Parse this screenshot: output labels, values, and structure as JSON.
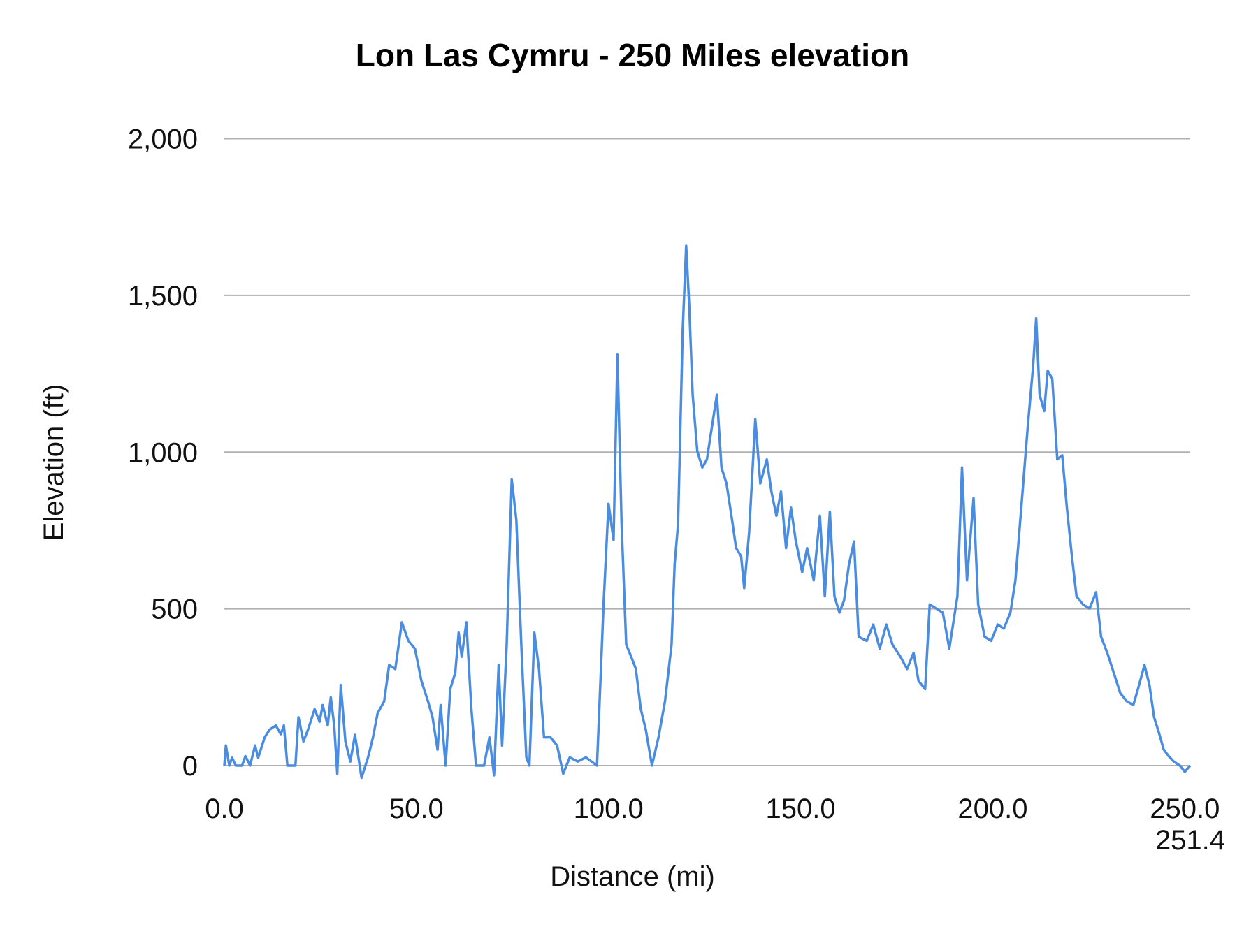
{
  "chart_data": {
    "type": "line",
    "title": "Lon Las Cymru - 250 Miles elevation",
    "xlabel": "Distance (mi)",
    "ylabel": "Elevation (ft)",
    "xlim": [
      0,
      251.4
    ],
    "ylim": [
      0,
      2000
    ],
    "x_ticks": [
      "0.0",
      "50.0",
      "100.0",
      "150.0",
      "200.0",
      "250.0",
      "251.4"
    ],
    "x_tick_values": [
      0,
      50,
      100,
      150,
      200,
      250,
      251.4
    ],
    "y_ticks": [
      "0",
      "500",
      "1,000",
      "1,500",
      "2,000"
    ],
    "y_tick_values": [
      0,
      500,
      1000,
      1500,
      2000
    ],
    "grid": "horizontal",
    "legend": "none",
    "line_color": "#4a8ce0",
    "x": [
      0,
      0.4,
      1.3,
      2,
      3,
      4.6,
      5.5,
      6.7,
      8,
      8.8,
      10.5,
      11.8,
      13.4,
      14.7,
      15.5,
      16.4,
      18.5,
      19.3,
      20.6,
      21.8,
      23.5,
      24.8,
      25.6,
      26.9,
      27.7,
      28.6,
      29.4,
      30.3,
      31.5,
      32.8,
      34,
      35.7,
      37.4,
      38.7,
      39.9,
      41.6,
      42.9,
      44.5,
      46.2,
      47.9,
      49.6,
      51.3,
      53,
      54.2,
      55.5,
      56.3,
      57.6,
      58.8,
      60.1,
      61,
      61.8,
      63,
      64.3,
      65.5,
      67.6,
      69,
      70.2,
      71.4,
      72.3,
      73.5,
      74.8,
      76,
      77.3,
      78.6,
      79.4,
      80.7,
      81.9,
      83.2,
      84.9,
      86.6,
      88.2,
      89.9,
      92,
      94.1,
      97,
      98.7,
      100,
      101.3,
      102.3,
      103.4,
      104.6,
      105.9,
      107.1,
      108.4,
      109.7,
      111.3,
      113,
      114.7,
      116.4,
      117.2,
      118.1,
      119.3,
      120.2,
      121,
      121.9,
      123.1,
      124.4,
      125.6,
      126.9,
      128.2,
      129.4,
      130.7,
      132,
      133.2,
      134.5,
      135.3,
      136.6,
      138.2,
      139.5,
      141.2,
      142.4,
      143.7,
      144.9,
      146.2,
      147.5,
      148.7,
      150.4,
      151.7,
      153.4,
      155,
      156.3,
      157.6,
      158.8,
      160.1,
      161.3,
      162.6,
      163.9,
      165.1,
      167.2,
      168.9,
      170.6,
      172.3,
      173.9,
      176,
      177.7,
      179.4,
      180.7,
      182.4,
      183.6,
      185.3,
      187,
      188.7,
      190.8,
      192,
      193.3,
      195,
      196.2,
      197.9,
      199.6,
      201.3,
      202.9,
      204.6,
      205.9,
      207.6,
      209.2,
      210.5,
      211.3,
      212.2,
      213.4,
      214.3,
      215.5,
      216.8,
      218.1,
      219.3,
      220.6,
      221.8,
      223.5,
      225.2,
      226.9,
      228.2,
      229.8,
      231.5,
      233.2,
      234.9,
      236.6,
      237.8,
      239.5,
      240.8,
      242,
      243.3,
      244.5,
      245.8,
      247.1,
      248.7,
      250,
      251.4
    ],
    "y": [
      0,
      64,
      0,
      25,
      0,
      0,
      30,
      0,
      64,
      25,
      90,
      115,
      128,
      100,
      128,
      0,
      0,
      154,
      77,
      115,
      180,
      140,
      193,
      128,
      218,
      128,
      -26,
      257,
      77,
      13,
      98,
      -39,
      26,
      90,
      167,
      205,
      321,
      308,
      457,
      398,
      373,
      270,
      205,
      154,
      51,
      193,
      0,
      244,
      296,
      424,
      347,
      457,
      180,
      0,
      0,
      90,
      -31,
      321,
      64,
      386,
      913,
      784,
      386,
      26,
      0,
      424,
      308,
      90,
      90,
      64,
      -26,
      26,
      13,
      26,
      0,
      514,
      835,
      720,
      1311,
      771,
      386,
      347,
      308,
      180,
      115,
      0,
      90,
      205,
      386,
      643,
      771,
      1388,
      1658,
      1465,
      1183,
      1003,
      951,
      977,
      1080,
      1183,
      951,
      900,
      797,
      694,
      668,
      566,
      745,
      1105,
      900,
      977,
      874,
      797,
      874,
      694,
      823,
      720,
      617,
      694,
      591,
      797,
      540,
      810,
      540,
      488,
      527,
      643,
      715,
      411,
      398,
      450,
      373,
      450,
      386,
      347,
      308,
      360,
      270,
      244,
      514,
      501,
      488,
      373,
      540,
      951,
      591,
      853,
      514,
      411,
      398,
      450,
      437,
      488,
      591,
      848,
      1093,
      1273,
      1427,
      1183,
      1131,
      1260,
      1234,
      977,
      990,
      823,
      668,
      540,
      514,
      501,
      553,
      411,
      360,
      296,
      231,
      205,
      193,
      244,
      321,
      257,
      154,
      103,
      51,
      30,
      13,
      0,
      -20,
      0
    ]
  }
}
